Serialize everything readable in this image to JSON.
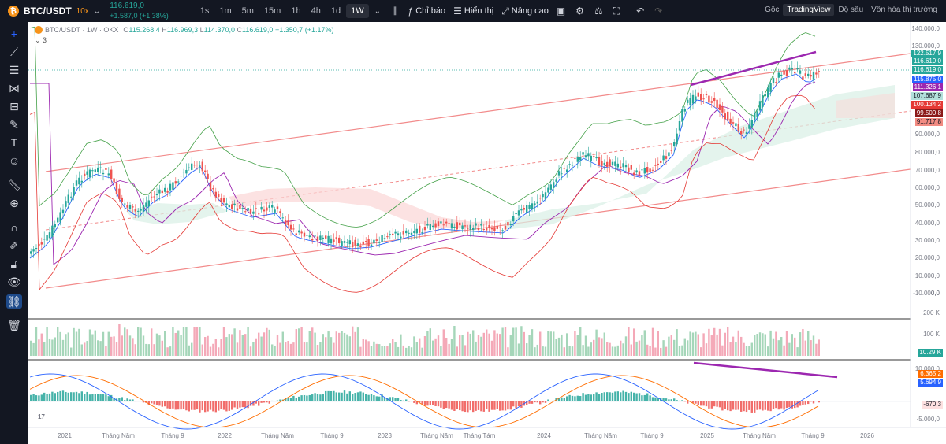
{
  "topbar": {
    "coin_icon": "bitcoin-icon",
    "symbol": "BTC/USDT",
    "leverage": "10x",
    "price": "116.619,0",
    "change": "+1.587,0 (+1,38%)",
    "timeframes": [
      "1s",
      "1m",
      "5m",
      "15m",
      "1h",
      "4h",
      "1d",
      "1W"
    ],
    "active_timeframe": "1W",
    "tools": [
      {
        "icon": "indicators-icon",
        "label": "Chỉ báo"
      },
      {
        "icon": "display-icon",
        "label": "Hiển thị"
      },
      {
        "icon": "advanced-icon",
        "label": "Nâng cao"
      }
    ],
    "views": [
      "Gốc",
      "TradingView",
      "Độ sâu",
      "Vốn hóa thị trường"
    ],
    "active_view": "TradingView"
  },
  "legend": {
    "title": "BTC/USDT · 1W · OKX",
    "open": "115.268,4",
    "high": "116.969,3",
    "low": "114.370,0",
    "close": "116.619,0",
    "change": "+1.350,7 (+1.17%)",
    "collapse_count": "3"
  },
  "price_axis": [
    "140.000,0",
    "130.000,0",
    "90.000,0",
    "80.000,0",
    "70.000,0",
    "60.000,0",
    "50.000,0",
    "40.000,0",
    "30.000,0",
    "20.000,0",
    "10.000,0",
    "0,0",
    "-10.000,0"
  ],
  "price_labels": [
    {
      "text": "122.517,9",
      "color": "#26a69a"
    },
    {
      "text": "116.619,0",
      "color": "#26a69a"
    },
    {
      "text": "116.619,0",
      "color": "#26a69a"
    },
    {
      "text": "115.875,0",
      "color": "#2962ff"
    },
    {
      "text": "111.326,1",
      "color": "#9c27b0"
    },
    {
      "text": "107.687,9",
      "color": "#b2dfdb"
    },
    {
      "text": "100.134,2",
      "color": "#e53935"
    },
    {
      "text": "99.500,8",
      "color": "#8b1a1a"
    },
    {
      "text": "91.717,8",
      "color": "#f28b82"
    }
  ],
  "volume_axis": [
    "200 K",
    "100 K"
  ],
  "volume_label": "10.29 K",
  "macd_axis": [
    "10.000,0",
    "-5.000,0"
  ],
  "macd_labels": [
    {
      "text": "6.365,2",
      "color": "#ff6d00"
    },
    {
      "text": "5.694,9",
      "color": "#2962ff"
    },
    {
      "text": "-670,3",
      "color": "#fde0e0"
    }
  ],
  "time_axis": [
    "2021",
    "Tháng Năm",
    "Tháng 9",
    "2022",
    "Tháng Năm",
    "Tháng 9",
    "2023",
    "Tháng Năm",
    "Tháng Tám",
    "2024",
    "Tháng Năm",
    "Tháng 9",
    "2025",
    "Tháng Năm",
    "Tháng 9",
    "2026"
  ],
  "colors": {
    "up": "#26a69a",
    "down": "#ef5350",
    "accent": "#9c27b0",
    "channel": "#f28b8b"
  }
}
